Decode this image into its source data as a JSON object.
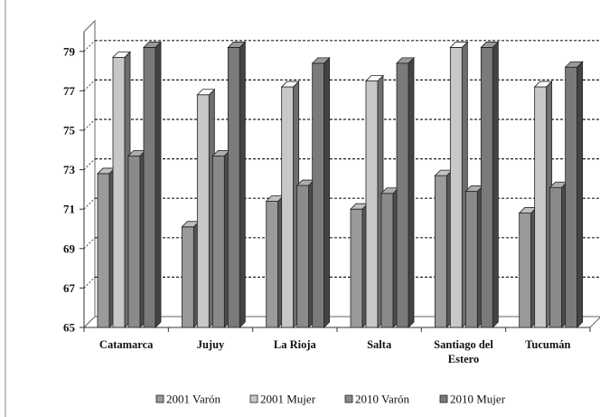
{
  "chart_data": {
    "type": "bar",
    "categories": [
      "Catamarca",
      "Jujuy",
      "La Rioja",
      "Salta",
      "Santiago del Estero",
      "Tucumán"
    ],
    "category_lines": [
      [
        "Catamarca"
      ],
      [
        "Jujuy"
      ],
      [
        "La Rioja"
      ],
      [
        "Salta"
      ],
      [
        "Santiago del",
        "Estero"
      ],
      [
        "Tucumán"
      ]
    ],
    "series": [
      {
        "name": "2001 Varón",
        "color": "#9a9a9a",
        "values": [
          72.8,
          70.1,
          71.4,
          71.0,
          72.7,
          70.8
        ]
      },
      {
        "name": "2001 Mujer",
        "color": "#c8c8c8",
        "values": [
          78.7,
          76.8,
          77.2,
          77.5,
          79.2,
          77.2
        ]
      },
      {
        "name": "2010 Varón",
        "color": "#8a8a8a",
        "values": [
          73.7,
          73.7,
          72.2,
          71.8,
          71.9,
          72.1
        ]
      },
      {
        "name": "2010 Mujer",
        "color": "#7a7a7a",
        "values": [
          79.2,
          79.2,
          78.4,
          78.4,
          79.2,
          78.2
        ]
      }
    ],
    "y_ticks": [
      65,
      67,
      69,
      71,
      73,
      75,
      77,
      79
    ],
    "ylim": [
      65,
      80
    ],
    "grid": true,
    "legend_position": "bottom",
    "title": "",
    "xlabel": "",
    "ylabel": ""
  }
}
